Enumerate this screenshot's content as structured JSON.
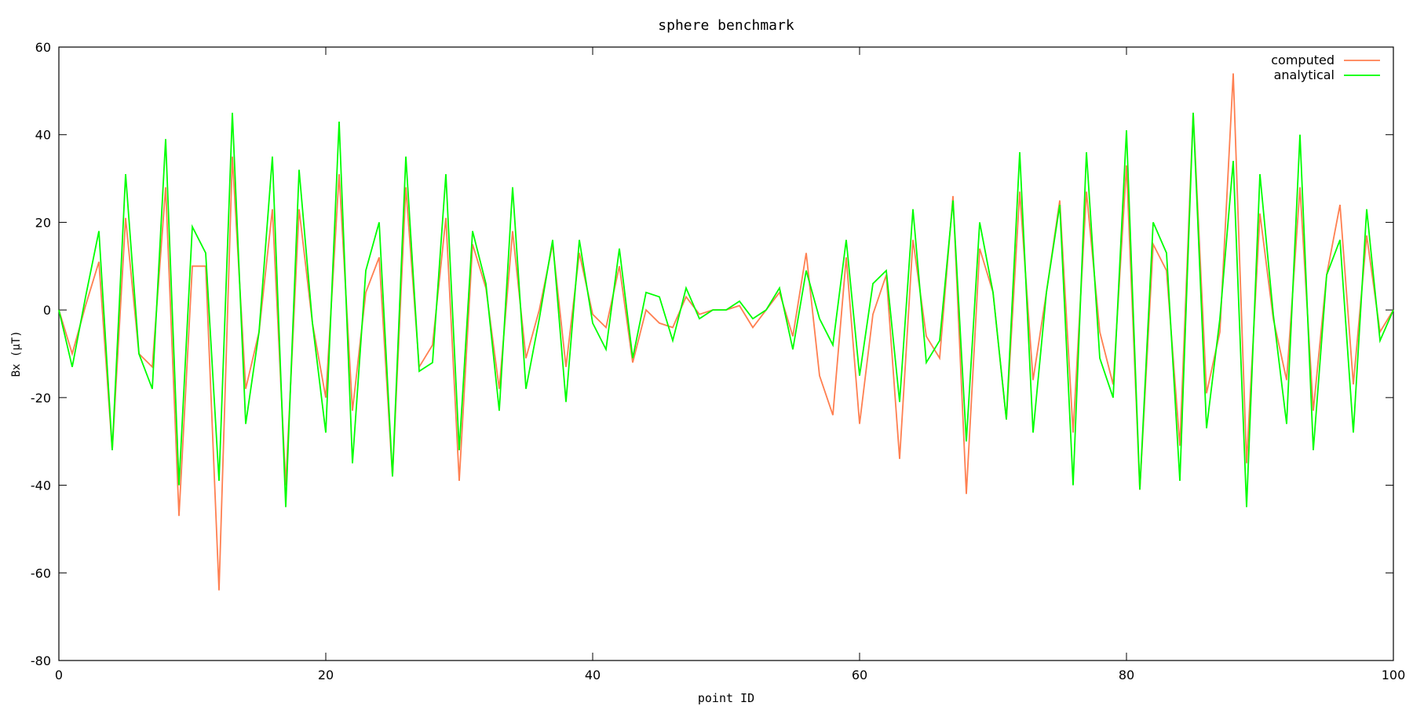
{
  "chart_data": {
    "type": "line",
    "title": "sphere benchmark",
    "xlabel": "point ID",
    "ylabel": "Bx (μT)",
    "xlim": [
      0,
      100
    ],
    "ylim": [
      -80,
      60
    ],
    "x_ticks": [
      0,
      20,
      40,
      60,
      80,
      100
    ],
    "y_ticks": [
      60,
      40,
      20,
      0,
      -20,
      -40,
      -60,
      -80
    ],
    "grid": false,
    "legend_position": "top-right",
    "x": [
      0,
      1,
      2,
      3,
      4,
      5,
      6,
      7,
      8,
      9,
      10,
      11,
      12,
      13,
      14,
      15,
      16,
      17,
      18,
      19,
      20,
      21,
      22,
      23,
      24,
      25,
      26,
      27,
      28,
      29,
      30,
      31,
      32,
      33,
      34,
      35,
      36,
      37,
      38,
      39,
      40,
      41,
      42,
      43,
      44,
      45,
      46,
      47,
      48,
      49,
      50,
      51,
      52,
      53,
      54,
      55,
      56,
      57,
      58,
      59,
      60,
      61,
      62,
      63,
      64,
      65,
      66,
      67,
      68,
      69,
      70,
      71,
      72,
      73,
      74,
      75,
      76,
      77,
      78,
      79,
      80,
      81,
      82,
      83,
      84,
      85,
      86,
      87,
      88,
      89,
      90,
      91,
      92,
      93,
      94,
      95,
      96,
      97,
      98,
      99,
      100
    ],
    "series": [
      {
        "name": "computed",
        "color": "#ff7f50",
        "values": [
          0,
          -10,
          1,
          11,
          -32,
          21,
          -10,
          -13,
          28,
          -47,
          10,
          10,
          -64,
          35,
          -18,
          -5,
          23,
          -40,
          23,
          -3,
          -20,
          31,
          -23,
          4,
          12,
          -38,
          28,
          -13,
          -8,
          21,
          -39,
          15,
          5,
          -18,
          18,
          -11,
          0,
          15,
          -13,
          13,
          -1,
          -4,
          10,
          -12,
          0,
          -3,
          -4,
          3,
          -1,
          0,
          0,
          1,
          -4,
          0,
          4,
          -6,
          13,
          -15,
          -24,
          12,
          -26,
          -1,
          8,
          -34,
          16,
          -6,
          -11,
          26,
          -42,
          14,
          4,
          -25,
          27,
          -16,
          4,
          25,
          -28,
          27,
          -5,
          -17,
          33,
          -41,
          15,
          9,
          -31,
          45,
          -19,
          -5,
          54,
          -35,
          22,
          -2,
          -16,
          28,
          -23,
          8,
          24,
          -17,
          17,
          -5,
          0
        ]
      },
      {
        "name": "analytical",
        "color": "#00ff00",
        "values": [
          0,
          -13,
          3,
          18,
          -32,
          31,
          -10,
          -18,
          39,
          -40,
          19,
          13,
          -39,
          45,
          -26,
          -5,
          35,
          -45,
          32,
          -3,
          -28,
          43,
          -35,
          9,
          20,
          -38,
          35,
          -14,
          -12,
          31,
          -32,
          18,
          6,
          -23,
          28,
          -18,
          -2,
          16,
          -21,
          16,
          -3,
          -9,
          14,
          -11,
          4,
          3,
          -7,
          5,
          -2,
          0,
          0,
          2,
          -2,
          0,
          5,
          -9,
          9,
          -2,
          -8,
          16,
          -15,
          6,
          9,
          -21,
          23,
          -12,
          -7,
          25,
          -30,
          20,
          4,
          -25,
          36,
          -28,
          4,
          24,
          -40,
          36,
          -11,
          -20,
          41,
          -41,
          20,
          13,
          -39,
          45,
          -27,
          -2,
          34,
          -45,
          31,
          -1,
          -26,
          40,
          -32,
          8,
          16,
          -28,
          23,
          -7,
          0
        ]
      }
    ]
  }
}
